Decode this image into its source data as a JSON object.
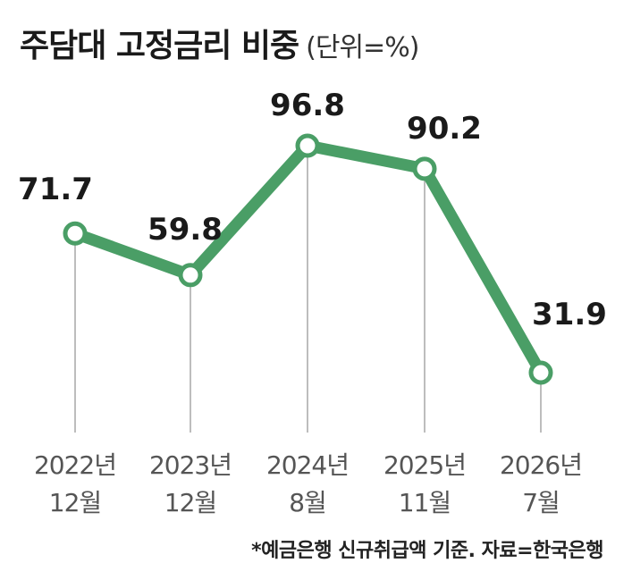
{
  "title": "주담대 고정금리 비중",
  "unit": "(단위=%)",
  "footnote": "*예금은행 신규취급액 기준. 자료=한국은행",
  "colors": {
    "line": "#4a9e66",
    "text": "#1a1a1a",
    "axis_text": "#555555",
    "guide": "#bdbdbd"
  },
  "chart_data": {
    "type": "line",
    "title": "주담대 고정금리 비중",
    "ylabel": "",
    "xlabel": "",
    "categories": [
      [
        "2022년",
        "12월"
      ],
      [
        "2023년",
        "12월"
      ],
      [
        "2024년",
        "8월"
      ],
      [
        "2025년",
        "11월"
      ],
      [
        "2026년",
        "7월"
      ]
    ],
    "series": [
      {
        "values": [
          71.7,
          59.8,
          96.8,
          90.2,
          31.9
        ]
      }
    ],
    "ylim": [
      20,
      100
    ],
    "grid": false,
    "data_labels": [
      "71.7",
      "59.8",
      "96.8",
      "90.2",
      "31.9"
    ]
  }
}
